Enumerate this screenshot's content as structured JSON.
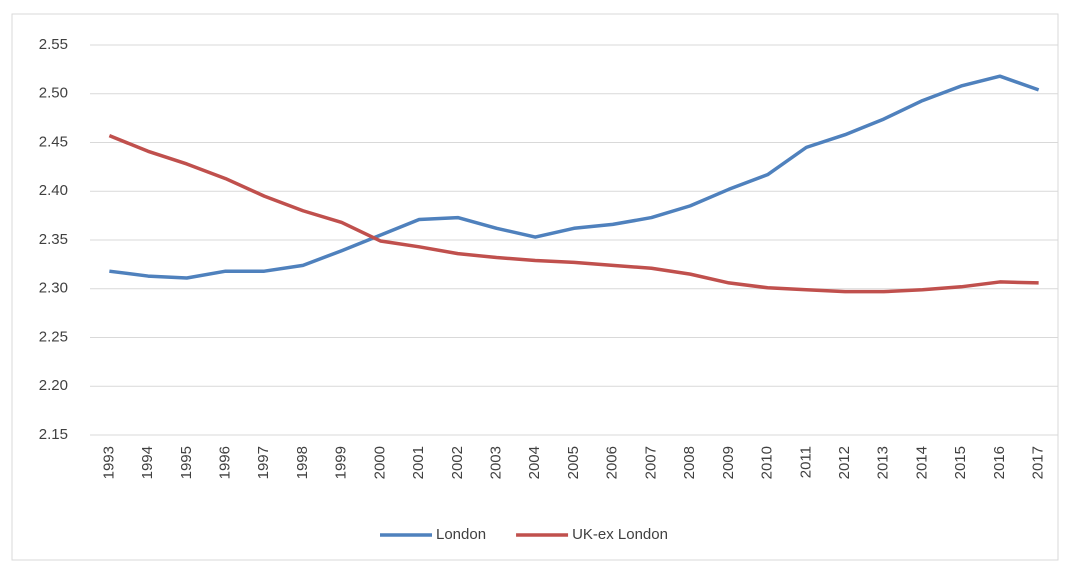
{
  "chart_data": {
    "type": "line",
    "categories": [
      "1993",
      "1994",
      "1995",
      "1996",
      "1997",
      "1998",
      "1999",
      "2000",
      "2001",
      "2002",
      "2003",
      "2004",
      "2005",
      "2006",
      "2007",
      "2008",
      "2009",
      "2010",
      "2011",
      "2012",
      "2013",
      "2014",
      "2015",
      "2016",
      "2017"
    ],
    "series": [
      {
        "name": "London",
        "color": "#4f81bd",
        "values": [
          2.318,
          2.313,
          2.311,
          2.318,
          2.318,
          2.324,
          2.339,
          2.355,
          2.371,
          2.373,
          2.362,
          2.353,
          2.362,
          2.366,
          2.373,
          2.385,
          2.402,
          2.417,
          2.445,
          2.458,
          2.474,
          2.493,
          2.508,
          2.518,
          2.504
        ]
      },
      {
        "name": "UK-ex London",
        "color": "#c0504d",
        "values": [
          2.457,
          2.441,
          2.428,
          2.413,
          2.395,
          2.38,
          2.368,
          2.349,
          2.343,
          2.336,
          2.332,
          2.329,
          2.327,
          2.324,
          2.321,
          2.315,
          2.306,
          2.301,
          2.299,
          2.297,
          2.297,
          2.299,
          2.302,
          2.307,
          2.306
        ]
      }
    ],
    "ylim": [
      2.15,
      2.55
    ],
    "yticks": [
      {
        "value": 2.15,
        "label": "2.15"
      },
      {
        "value": 2.2,
        "label": "2.20"
      },
      {
        "value": 2.25,
        "label": "2.25"
      },
      {
        "value": 2.3,
        "label": "2.30"
      },
      {
        "value": 2.35,
        "label": "2.35"
      },
      {
        "value": 2.4,
        "label": "2.40"
      },
      {
        "value": 2.45,
        "label": "2.45"
      },
      {
        "value": 2.5,
        "label": "2.50"
      },
      {
        "value": 2.55,
        "label": "2.55"
      }
    ],
    "grid": true,
    "legend": "bottom"
  }
}
